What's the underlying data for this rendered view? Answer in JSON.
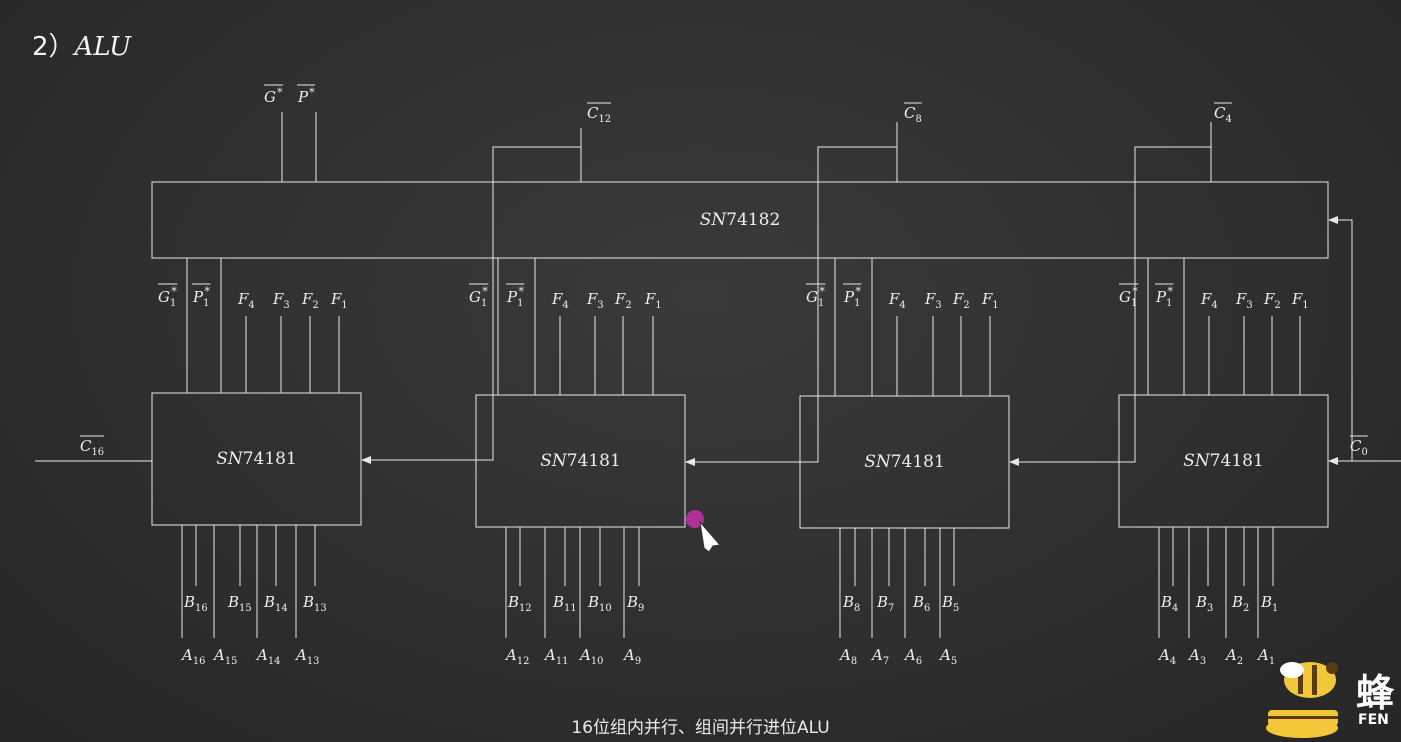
{
  "heading": {
    "number": "2）",
    "title": "ALU"
  },
  "caption": "16位组内并行、组间并行进位ALU",
  "cla_chip": {
    "label": "SN74182"
  },
  "top_outputs": [
    {
      "name": "G",
      "sup": "*"
    },
    {
      "name": "P",
      "sup": "*"
    },
    {
      "name": "C",
      "sub": "12"
    },
    {
      "name": "C",
      "sub": "8"
    },
    {
      "name": "C",
      "sub": "4"
    }
  ],
  "carry_in": {
    "name": "C",
    "sub": "0"
  },
  "carry_out": {
    "name": "C",
    "sub": "16"
  },
  "alu_groups": [
    {
      "chip": "SN74181",
      "gp": [
        {
          "name": "G",
          "sub": "1",
          "sup": "*"
        },
        {
          "name": "P",
          "sub": "1",
          "sup": "*"
        }
      ],
      "f": [
        {
          "name": "F",
          "sub": "4"
        },
        {
          "name": "F",
          "sub": "3"
        },
        {
          "name": "F",
          "sub": "2"
        },
        {
          "name": "F",
          "sub": "1"
        }
      ],
      "b": [
        {
          "name": "B",
          "sub": "16"
        },
        {
          "name": "B",
          "sub": "15"
        },
        {
          "name": "B",
          "sub": "14"
        },
        {
          "name": "B",
          "sub": "13"
        }
      ],
      "a": [
        {
          "name": "A",
          "sub": "16"
        },
        {
          "name": "A",
          "sub": "15"
        },
        {
          "name": "A",
          "sub": "14"
        },
        {
          "name": "A",
          "sub": "13"
        }
      ]
    },
    {
      "chip": "SN74181",
      "gp": [
        {
          "name": "G",
          "sub": "1",
          "sup": "*"
        },
        {
          "name": "P",
          "sub": "1",
          "sup": "*"
        }
      ],
      "f": [
        {
          "name": "F",
          "sub": "4"
        },
        {
          "name": "F",
          "sub": "3"
        },
        {
          "name": "F",
          "sub": "2"
        },
        {
          "name": "F",
          "sub": "1"
        }
      ],
      "b": [
        {
          "name": "B",
          "sub": "12"
        },
        {
          "name": "B",
          "sub": "11"
        },
        {
          "name": "B",
          "sub": "10"
        },
        {
          "name": "B",
          "sub": "9"
        }
      ],
      "a": [
        {
          "name": "A",
          "sub": "12"
        },
        {
          "name": "A",
          "sub": "11"
        },
        {
          "name": "A",
          "sub": "10"
        },
        {
          "name": "A",
          "sub": "9"
        }
      ]
    },
    {
      "chip": "SN74181",
      "gp": [
        {
          "name": "G",
          "sub": "1",
          "sup": "*"
        },
        {
          "name": "P",
          "sub": "1",
          "sup": "*"
        }
      ],
      "f": [
        {
          "name": "F",
          "sub": "4"
        },
        {
          "name": "F",
          "sub": "3"
        },
        {
          "name": "F",
          "sub": "2"
        },
        {
          "name": "F",
          "sub": "1"
        }
      ],
      "b": [
        {
          "name": "B",
          "sub": "8"
        },
        {
          "name": "B",
          "sub": "7"
        },
        {
          "name": "B",
          "sub": "6"
        },
        {
          "name": "B",
          "sub": "5"
        }
      ],
      "a": [
        {
          "name": "A",
          "sub": "8"
        },
        {
          "name": "A",
          "sub": "7"
        },
        {
          "name": "A",
          "sub": "6"
        },
        {
          "name": "A",
          "sub": "5"
        }
      ]
    },
    {
      "chip": "SN74181",
      "gp": [
        {
          "name": "G",
          "sub": "1",
          "sup": "*"
        },
        {
          "name": "P",
          "sub": "1",
          "sup": "*"
        }
      ],
      "f": [
        {
          "name": "F",
          "sub": "4"
        },
        {
          "name": "F",
          "sub": "3"
        },
        {
          "name": "F",
          "sub": "2"
        },
        {
          "name": "F",
          "sub": "1"
        }
      ],
      "b": [
        {
          "name": "B",
          "sub": "4"
        },
        {
          "name": "B",
          "sub": "3"
        },
        {
          "name": "B",
          "sub": "2"
        },
        {
          "name": "B",
          "sub": "1"
        }
      ],
      "a": [
        {
          "name": "A",
          "sub": "4"
        },
        {
          "name": "A",
          "sub": "3"
        },
        {
          "name": "A",
          "sub": "2"
        },
        {
          "name": "A",
          "sub": "1"
        }
      ]
    }
  ],
  "logo": {
    "cn": "蜂",
    "en": "FEN",
    "icon": "bee-logo-icon"
  },
  "colors": {
    "background": "#2f2f2f",
    "line": "#e8e8e8",
    "cursor": "#b0309a"
  }
}
